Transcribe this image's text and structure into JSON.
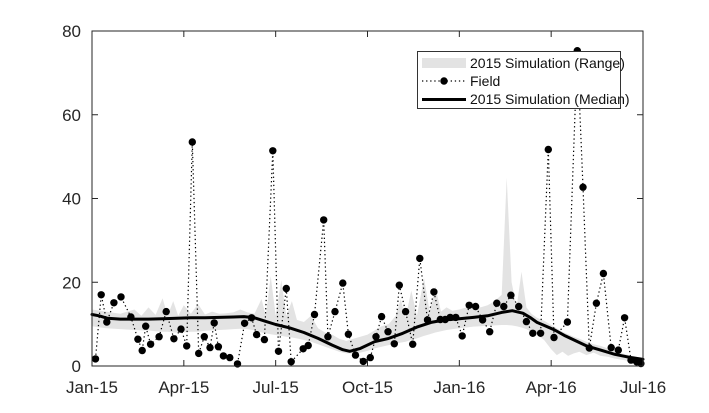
{
  "figure": {
    "background": "#ffffff"
  },
  "axes": {
    "frame_color": "#262626",
    "tick_label_color": "#262626",
    "y_tick_labels": [
      "0",
      "20",
      "40",
      "60",
      "80"
    ],
    "x_tick_labels": [
      "Jan-15",
      "Apr-15",
      "Jul-15",
      "Oct-15",
      "Jan-16",
      "Apr-16",
      "Jul-16"
    ]
  },
  "chart_data": {
    "type": "line",
    "title": "",
    "xlabel": "",
    "ylabel": "",
    "ylim": [
      0,
      80
    ],
    "xlim_weeks": [
      0,
      78
    ],
    "grid": false,
    "x_unit": "weeks since Jan-2015",
    "x_ticks": {
      "positions_weeks": [
        0,
        13,
        26,
        39,
        52,
        65,
        78
      ],
      "labels": [
        "Jan-15",
        "Apr-15",
        "Jul-15",
        "Oct-15",
        "Jan-16",
        "Apr-16",
        "Jul-16"
      ]
    },
    "y_ticks": [
      0,
      20,
      40,
      60,
      80
    ],
    "legend": {
      "position": "northeast-inside"
    },
    "series": [
      {
        "name": "2015 Simulation (Range)",
        "type": "area-band",
        "color": "#e3e3e3",
        "points_wk_lo_up": [
          [
            0,
            9.5,
            13.5
          ],
          [
            2,
            9.0,
            13.0
          ],
          [
            4,
            8.8,
            12.5
          ],
          [
            6,
            8.6,
            13.5
          ],
          [
            7,
            8.5,
            12.0
          ],
          [
            8,
            8.5,
            14.0
          ],
          [
            9,
            8.3,
            12.2
          ],
          [
            10,
            8.2,
            16.2
          ],
          [
            10.7,
            8.2,
            12.0
          ],
          [
            11.5,
            8.0,
            15.5
          ],
          [
            12.2,
            8.0,
            12.0
          ],
          [
            13,
            8.0,
            14.5
          ],
          [
            14,
            8.2,
            12.5
          ],
          [
            15,
            8.2,
            14.8
          ],
          [
            16,
            8.4,
            12.3
          ],
          [
            17,
            8.5,
            13.0
          ],
          [
            18,
            8.6,
            12.5
          ],
          [
            19,
            8.7,
            12.6
          ],
          [
            20,
            8.8,
            12.8
          ],
          [
            21,
            8.9,
            13.5
          ],
          [
            22,
            8.8,
            12.8
          ],
          [
            23,
            8.5,
            12.5
          ],
          [
            24,
            8.0,
            16.0
          ],
          [
            24.6,
            7.8,
            12.0
          ],
          [
            25.3,
            7.6,
            21.5
          ],
          [
            26,
            7.4,
            12.0
          ],
          [
            26.8,
            7.2,
            20.5
          ],
          [
            27.5,
            7.0,
            12.0
          ],
          [
            28.3,
            6.8,
            15.5
          ],
          [
            29,
            6.6,
            11.0
          ],
          [
            30,
            6.2,
            10.5
          ],
          [
            31,
            5.8,
            12.0
          ],
          [
            32,
            5.2,
            9.0
          ],
          [
            33,
            4.6,
            8.0
          ],
          [
            34,
            4.0,
            7.5
          ],
          [
            35,
            3.4,
            6.5
          ],
          [
            36,
            3.0,
            6.0
          ],
          [
            37,
            3.0,
            6.5
          ],
          [
            38,
            3.2,
            7.0
          ],
          [
            39,
            3.6,
            7.5
          ],
          [
            40,
            4.2,
            8.5
          ],
          [
            41,
            4.6,
            9.5
          ],
          [
            42,
            5.0,
            10.0
          ],
          [
            43,
            5.4,
            12.0
          ],
          [
            43.7,
            5.6,
            16.0
          ],
          [
            44.4,
            5.8,
            11.5
          ],
          [
            45.2,
            6.2,
            18.0
          ],
          [
            46,
            6.6,
            12.0
          ],
          [
            47,
            7.2,
            21.0
          ],
          [
            47.8,
            7.6,
            13.0
          ],
          [
            48.6,
            8.0,
            19.0
          ],
          [
            49.4,
            8.3,
            13.0
          ],
          [
            50.2,
            8.6,
            14.0
          ],
          [
            51,
            8.8,
            13.2
          ],
          [
            52,
            9.0,
            13.5
          ],
          [
            53,
            9.2,
            14.0
          ],
          [
            54,
            9.4,
            14.5
          ],
          [
            55,
            9.5,
            14.0
          ],
          [
            56,
            9.6,
            14.5
          ],
          [
            57,
            9.7,
            15.5
          ],
          [
            58,
            9.8,
            17.0
          ],
          [
            58.7,
            9.8,
            45.0
          ],
          [
            59.4,
            9.7,
            20.0
          ],
          [
            60.1,
            9.5,
            14.0
          ],
          [
            60.8,
            9.2,
            22.5
          ],
          [
            61.5,
            8.8,
            14.0
          ],
          [
            62.2,
            8.2,
            12.5
          ],
          [
            63,
            7.4,
            11.5
          ],
          [
            64,
            6.2,
            10.8
          ],
          [
            65,
            4.0,
            9.8
          ],
          [
            65.8,
            2.6,
            9.0
          ],
          [
            66.6,
            3.4,
            8.2
          ],
          [
            67.4,
            2.4,
            7.6
          ],
          [
            68.2,
            3.0,
            7.0
          ],
          [
            69,
            3.4,
            6.5
          ],
          [
            70,
            2.6,
            5.8
          ],
          [
            71,
            3.2,
            5.2
          ],
          [
            72,
            2.4,
            4.8
          ],
          [
            73,
            2.2,
            4.2
          ],
          [
            74,
            1.8,
            3.6
          ],
          [
            75,
            1.5,
            3.0
          ],
          [
            76,
            1.2,
            2.6
          ],
          [
            77,
            0.9,
            2.2
          ],
          [
            78,
            0.7,
            1.9
          ]
        ]
      },
      {
        "name": "Field",
        "type": "scatter-dotted-line",
        "color": "#000000",
        "marker": "filled-circle",
        "points_wk_val": [
          [
            0.5,
            1.7
          ],
          [
            1.3,
            17.0
          ],
          [
            2.1,
            10.5
          ],
          [
            3.1,
            15.1
          ],
          [
            4.1,
            16.5
          ],
          [
            5.5,
            11.7
          ],
          [
            6.5,
            6.4
          ],
          [
            7.1,
            3.7
          ],
          [
            7.6,
            9.5
          ],
          [
            8.3,
            5.2
          ],
          [
            9.5,
            7.0
          ],
          [
            10.5,
            13.0
          ],
          [
            11.6,
            6.5
          ],
          [
            12.6,
            8.8
          ],
          [
            13.4,
            4.8
          ],
          [
            14.2,
            53.5
          ],
          [
            15.1,
            3.0
          ],
          [
            15.9,
            7.0
          ],
          [
            16.7,
            4.4
          ],
          [
            17.3,
            10.3
          ],
          [
            17.9,
            4.6
          ],
          [
            18.6,
            2.4
          ],
          [
            19.5,
            2.0
          ],
          [
            20.6,
            0.5
          ],
          [
            21.6,
            10.2
          ],
          [
            22.6,
            11.5
          ],
          [
            23.3,
            7.5
          ],
          [
            24.4,
            6.3
          ],
          [
            25.6,
            51.4
          ],
          [
            26.4,
            3.5
          ],
          [
            27.5,
            18.5
          ],
          [
            28.2,
            1.0
          ],
          [
            29.9,
            4.1
          ],
          [
            30.6,
            4.9
          ],
          [
            31.5,
            12.3
          ],
          [
            32.8,
            34.9
          ],
          [
            33.4,
            7.0
          ],
          [
            34.4,
            13.0
          ],
          [
            35.5,
            19.8
          ],
          [
            36.3,
            7.6
          ],
          [
            37.3,
            2.6
          ],
          [
            38.4,
            1.1
          ],
          [
            39.4,
            2.0
          ],
          [
            40.2,
            7.0
          ],
          [
            41.0,
            11.8
          ],
          [
            41.9,
            8.2
          ],
          [
            42.8,
            5.3
          ],
          [
            43.5,
            19.3
          ],
          [
            44.4,
            13.0
          ],
          [
            45.4,
            5.2
          ],
          [
            46.4,
            25.7
          ],
          [
            47.5,
            11.0
          ],
          [
            48.4,
            17.7
          ],
          [
            49.3,
            11.1
          ],
          [
            50.0,
            11.1
          ],
          [
            50.7,
            11.6
          ],
          [
            51.5,
            11.6
          ],
          [
            52.4,
            7.2
          ],
          [
            53.4,
            14.5
          ],
          [
            54.3,
            14.2
          ],
          [
            55.3,
            11.0
          ],
          [
            56.3,
            8.2
          ],
          [
            57.3,
            15.0
          ],
          [
            58.3,
            14.2
          ],
          [
            59.3,
            16.9
          ],
          [
            60.4,
            14.2
          ],
          [
            61.5,
            10.6
          ],
          [
            62.4,
            7.8
          ],
          [
            63.5,
            7.8
          ],
          [
            64.6,
            51.7
          ],
          [
            65.4,
            6.8
          ],
          [
            67.3,
            10.5
          ],
          [
            68.7,
            75.3
          ],
          [
            69.5,
            42.7
          ],
          [
            70.4,
            4.3
          ],
          [
            71.4,
            15.0
          ],
          [
            72.4,
            22.1
          ],
          [
            73.5,
            4.4
          ],
          [
            74.5,
            3.8
          ],
          [
            75.4,
            11.5
          ],
          [
            76.3,
            1.4
          ],
          [
            77.1,
            1.0
          ],
          [
            77.7,
            0.6
          ]
        ]
      },
      {
        "name": "2015 Simulation (Median)",
        "type": "line",
        "color": "#000000",
        "line_width": 3,
        "points_wk_val": [
          [
            0,
            12.3
          ],
          [
            1,
            12.0
          ],
          [
            2.2,
            11.4
          ],
          [
            4,
            11.2
          ],
          [
            6,
            11.2
          ],
          [
            8,
            11.2
          ],
          [
            10,
            11.3
          ],
          [
            12,
            11.4
          ],
          [
            14,
            11.5
          ],
          [
            16,
            11.5
          ],
          [
            18,
            11.6
          ],
          [
            20,
            11.7
          ],
          [
            21.5,
            11.8
          ],
          [
            23,
            11.5
          ],
          [
            24.5,
            10.7
          ],
          [
            26,
            9.9
          ],
          [
            28,
            9.1
          ],
          [
            30,
            8.0
          ],
          [
            32,
            6.6
          ],
          [
            34,
            5.0
          ],
          [
            35.5,
            3.9
          ],
          [
            36.5,
            3.5
          ],
          [
            38,
            4.2
          ],
          [
            40,
            5.8
          ],
          [
            42,
            6.6
          ],
          [
            44,
            7.8
          ],
          [
            46,
            9.3
          ],
          [
            48,
            10.4
          ],
          [
            50,
            11.0
          ],
          [
            52,
            11.3
          ],
          [
            54,
            11.6
          ],
          [
            56,
            12.0
          ],
          [
            58,
            12.8
          ],
          [
            59.5,
            13.2
          ],
          [
            61,
            12.6
          ],
          [
            62,
            11.6
          ],
          [
            63,
            10.4
          ],
          [
            64,
            9.7
          ],
          [
            65.5,
            8.6
          ],
          [
            67,
            7.2
          ],
          [
            68.5,
            6.0
          ],
          [
            70,
            4.8
          ],
          [
            72,
            3.8
          ],
          [
            74,
            2.8
          ],
          [
            76,
            2.1
          ],
          [
            78,
            1.6
          ]
        ]
      }
    ]
  }
}
